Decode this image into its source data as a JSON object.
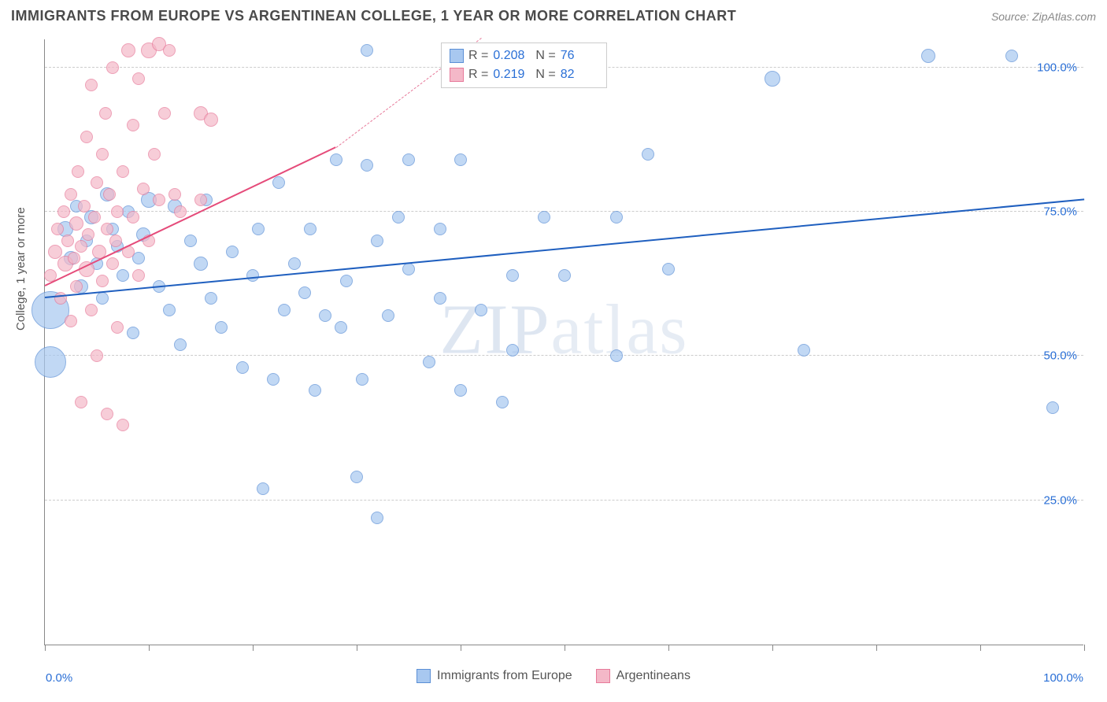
{
  "title": "IMMIGRANTS FROM EUROPE VS ARGENTINEAN COLLEGE, 1 YEAR OR MORE CORRELATION CHART",
  "source": "Source: ZipAtlas.com",
  "ylabel": "College, 1 year or more",
  "watermark_a": "ZIP",
  "watermark_b": "atlas",
  "chart": {
    "type": "scatter",
    "xlim": [
      0,
      100
    ],
    "ylim": [
      0,
      105
    ],
    "x_ticks": [
      0,
      10,
      20,
      30,
      40,
      50,
      60,
      70,
      80,
      90,
      100
    ],
    "y_gridlines": [
      25,
      50,
      75,
      100
    ],
    "y_tick_labels": [
      "25.0%",
      "50.0%",
      "75.0%",
      "100.0%"
    ],
    "x0_label": "0.0%",
    "x100_label": "100.0%",
    "background_color": "#ffffff",
    "grid_color": "#cccccc",
    "axis_color": "#888888",
    "tick_label_color": "#2a6fd6",
    "point_stroke_width": 1.2,
    "point_fill_opacity": 0.35,
    "series": [
      {
        "name": "Immigrants from Europe",
        "color_fill": "#a8c8f0",
        "color_stroke": "#5b8fd6",
        "R": "0.208",
        "N": "76",
        "trend": {
          "x1": 0,
          "y1": 60,
          "x2": 100,
          "y2": 77,
          "color": "#1f5fbf",
          "width": 2.5,
          "dash": false
        },
        "points": [
          {
            "x": 0.5,
            "y": 58,
            "r": 24
          },
          {
            "x": 0.5,
            "y": 49,
            "r": 20
          },
          {
            "x": 2,
            "y": 72,
            "r": 10
          },
          {
            "x": 2.5,
            "y": 67,
            "r": 9
          },
          {
            "x": 3,
            "y": 76,
            "r": 8
          },
          {
            "x": 3.5,
            "y": 62,
            "r": 9
          },
          {
            "x": 4,
            "y": 70,
            "r": 8
          },
          {
            "x": 4.5,
            "y": 74,
            "r": 9
          },
          {
            "x": 5,
            "y": 66,
            "r": 8
          },
          {
            "x": 5.5,
            "y": 60,
            "r": 8
          },
          {
            "x": 6,
            "y": 78,
            "r": 9
          },
          {
            "x": 6.5,
            "y": 72,
            "r": 8
          },
          {
            "x": 7,
            "y": 69,
            "r": 8
          },
          {
            "x": 7.5,
            "y": 64,
            "r": 8
          },
          {
            "x": 8,
            "y": 75,
            "r": 8
          },
          {
            "x": 8.5,
            "y": 54,
            "r": 8
          },
          {
            "x": 9,
            "y": 67,
            "r": 8
          },
          {
            "x": 9.5,
            "y": 71,
            "r": 9
          },
          {
            "x": 10,
            "y": 77,
            "r": 10
          },
          {
            "x": 11,
            "y": 62,
            "r": 8
          },
          {
            "x": 12,
            "y": 58,
            "r": 8
          },
          {
            "x": 12.5,
            "y": 76,
            "r": 9
          },
          {
            "x": 13,
            "y": 52,
            "r": 8
          },
          {
            "x": 14,
            "y": 70,
            "r": 8
          },
          {
            "x": 15,
            "y": 66,
            "r": 9
          },
          {
            "x": 15.5,
            "y": 77,
            "r": 8
          },
          {
            "x": 16,
            "y": 60,
            "r": 8
          },
          {
            "x": 17,
            "y": 55,
            "r": 8
          },
          {
            "x": 18,
            "y": 68,
            "r": 8
          },
          {
            "x": 19,
            "y": 48,
            "r": 8
          },
          {
            "x": 20,
            "y": 64,
            "r": 8
          },
          {
            "x": 20.5,
            "y": 72,
            "r": 8
          },
          {
            "x": 21,
            "y": 27,
            "r": 8
          },
          {
            "x": 22,
            "y": 46,
            "r": 8
          },
          {
            "x": 22.5,
            "y": 80,
            "r": 8
          },
          {
            "x": 23,
            "y": 58,
            "r": 8
          },
          {
            "x": 24,
            "y": 66,
            "r": 8
          },
          {
            "x": 25,
            "y": 61,
            "r": 8
          },
          {
            "x": 25.5,
            "y": 72,
            "r": 8
          },
          {
            "x": 26,
            "y": 44,
            "r": 8
          },
          {
            "x": 27,
            "y": 57,
            "r": 8
          },
          {
            "x": 28,
            "y": 84,
            "r": 8
          },
          {
            "x": 28.5,
            "y": 55,
            "r": 8
          },
          {
            "x": 29,
            "y": 63,
            "r": 8
          },
          {
            "x": 30,
            "y": 29,
            "r": 8
          },
          {
            "x": 30.5,
            "y": 46,
            "r": 8
          },
          {
            "x": 31,
            "y": 83,
            "r": 8
          },
          {
            "x": 31,
            "y": 103,
            "r": 8
          },
          {
            "x": 32,
            "y": 22,
            "r": 8
          },
          {
            "x": 32,
            "y": 70,
            "r": 8
          },
          {
            "x": 33,
            "y": 57,
            "r": 8
          },
          {
            "x": 34,
            "y": 74,
            "r": 8
          },
          {
            "x": 35,
            "y": 65,
            "r": 8
          },
          {
            "x": 35,
            "y": 84,
            "r": 8
          },
          {
            "x": 37,
            "y": 49,
            "r": 8
          },
          {
            "x": 38,
            "y": 60,
            "r": 8
          },
          {
            "x": 38,
            "y": 72,
            "r": 8
          },
          {
            "x": 40,
            "y": 84,
            "r": 8
          },
          {
            "x": 40,
            "y": 44,
            "r": 8
          },
          {
            "x": 42,
            "y": 58,
            "r": 8
          },
          {
            "x": 44,
            "y": 42,
            "r": 8
          },
          {
            "x": 45,
            "y": 64,
            "r": 8
          },
          {
            "x": 45,
            "y": 51,
            "r": 8
          },
          {
            "x": 48,
            "y": 74,
            "r": 8
          },
          {
            "x": 50,
            "y": 64,
            "r": 8
          },
          {
            "x": 55,
            "y": 74,
            "r": 8
          },
          {
            "x": 55,
            "y": 50,
            "r": 8
          },
          {
            "x": 58,
            "y": 85,
            "r": 8
          },
          {
            "x": 60,
            "y": 65,
            "r": 8
          },
          {
            "x": 70,
            "y": 98,
            "r": 10
          },
          {
            "x": 73,
            "y": 51,
            "r": 8
          },
          {
            "x": 85,
            "y": 102,
            "r": 9
          },
          {
            "x": 93,
            "y": 102,
            "r": 8
          },
          {
            "x": 97,
            "y": 41,
            "r": 8
          }
        ]
      },
      {
        "name": "Argentineans",
        "color_fill": "#f4b8c8",
        "color_stroke": "#e77a9a",
        "R": "0.219",
        "N": "82",
        "trend_solid": {
          "x1": 0,
          "y1": 62,
          "x2": 28,
          "y2": 86,
          "color": "#e54b7a",
          "width": 2.5,
          "dash": false
        },
        "trend_dash": {
          "x1": 28,
          "y1": 86,
          "x2": 42,
          "y2": 105,
          "color": "#e77a9a",
          "width": 1.2,
          "dash": true
        },
        "points": [
          {
            "x": 0.5,
            "y": 64,
            "r": 8
          },
          {
            "x": 1,
            "y": 68,
            "r": 9
          },
          {
            "x": 1.2,
            "y": 72,
            "r": 8
          },
          {
            "x": 1.5,
            "y": 60,
            "r": 8
          },
          {
            "x": 1.8,
            "y": 75,
            "r": 8
          },
          {
            "x": 2,
            "y": 66,
            "r": 10
          },
          {
            "x": 2.2,
            "y": 70,
            "r": 8
          },
          {
            "x": 2.5,
            "y": 78,
            "r": 8
          },
          {
            "x": 2.5,
            "y": 56,
            "r": 8
          },
          {
            "x": 2.8,
            "y": 67,
            "r": 8
          },
          {
            "x": 3,
            "y": 73,
            "r": 9
          },
          {
            "x": 3,
            "y": 62,
            "r": 8
          },
          {
            "x": 3.2,
            "y": 82,
            "r": 8
          },
          {
            "x": 3.5,
            "y": 69,
            "r": 8
          },
          {
            "x": 3.5,
            "y": 42,
            "r": 8
          },
          {
            "x": 3.8,
            "y": 76,
            "r": 8
          },
          {
            "x": 4,
            "y": 65,
            "r": 10
          },
          {
            "x": 4,
            "y": 88,
            "r": 8
          },
          {
            "x": 4.2,
            "y": 71,
            "r": 8
          },
          {
            "x": 4.5,
            "y": 58,
            "r": 8
          },
          {
            "x": 4.5,
            "y": 97,
            "r": 8
          },
          {
            "x": 4.8,
            "y": 74,
            "r": 8
          },
          {
            "x": 5,
            "y": 80,
            "r": 8
          },
          {
            "x": 5,
            "y": 50,
            "r": 8
          },
          {
            "x": 5.2,
            "y": 68,
            "r": 9
          },
          {
            "x": 5.5,
            "y": 85,
            "r": 8
          },
          {
            "x": 5.5,
            "y": 63,
            "r": 8
          },
          {
            "x": 5.8,
            "y": 92,
            "r": 8
          },
          {
            "x": 6,
            "y": 72,
            "r": 8
          },
          {
            "x": 6,
            "y": 40,
            "r": 8
          },
          {
            "x": 6.2,
            "y": 78,
            "r": 8
          },
          {
            "x": 6.5,
            "y": 66,
            "r": 8
          },
          {
            "x": 6.5,
            "y": 100,
            "r": 8
          },
          {
            "x": 6.8,
            "y": 70,
            "r": 8
          },
          {
            "x": 7,
            "y": 75,
            "r": 8
          },
          {
            "x": 7,
            "y": 55,
            "r": 8
          },
          {
            "x": 7.5,
            "y": 82,
            "r": 8
          },
          {
            "x": 7.5,
            "y": 38,
            "r": 8
          },
          {
            "x": 8,
            "y": 68,
            "r": 8
          },
          {
            "x": 8,
            "y": 103,
            "r": 9
          },
          {
            "x": 8.5,
            "y": 74,
            "r": 8
          },
          {
            "x": 8.5,
            "y": 90,
            "r": 8
          },
          {
            "x": 9,
            "y": 64,
            "r": 8
          },
          {
            "x": 9,
            "y": 98,
            "r": 8
          },
          {
            "x": 9.5,
            "y": 79,
            "r": 8
          },
          {
            "x": 10,
            "y": 70,
            "r": 8
          },
          {
            "x": 10,
            "y": 103,
            "r": 10
          },
          {
            "x": 10.5,
            "y": 85,
            "r": 8
          },
          {
            "x": 11,
            "y": 104,
            "r": 9
          },
          {
            "x": 11,
            "y": 77,
            "r": 8
          },
          {
            "x": 11.5,
            "y": 92,
            "r": 8
          },
          {
            "x": 12,
            "y": 103,
            "r": 8
          },
          {
            "x": 12.5,
            "y": 78,
            "r": 8
          },
          {
            "x": 13,
            "y": 75,
            "r": 8
          },
          {
            "x": 15,
            "y": 92,
            "r": 9
          },
          {
            "x": 15,
            "y": 77,
            "r": 8
          },
          {
            "x": 16,
            "y": 91,
            "r": 9
          }
        ]
      }
    ],
    "legend_bottom": [
      {
        "label": "Immigrants from Europe",
        "fill": "#a8c8f0",
        "stroke": "#5b8fd6"
      },
      {
        "label": "Argentineans",
        "fill": "#f4b8c8",
        "stroke": "#e77a9a"
      }
    ],
    "legend_top_labels": {
      "R": "R =",
      "N": "N ="
    }
  }
}
